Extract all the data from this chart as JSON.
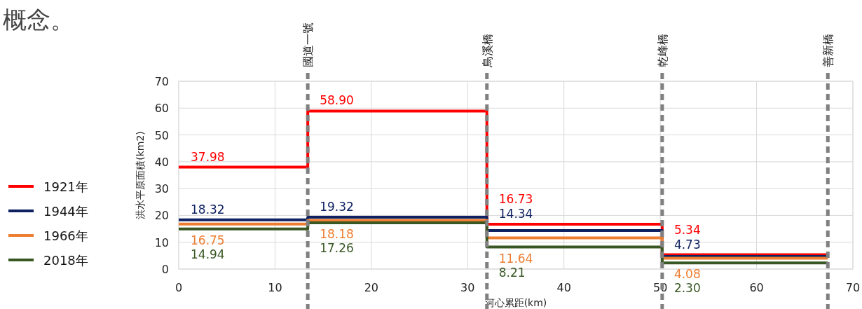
{
  "chart_data": {
    "type": "step",
    "xlabel": "河心累距(km)",
    "ylabel": "洪水平原面積(km2)",
    "annotations": [
      "概念。"
    ],
    "xlim": [
      0,
      70
    ],
    "xticks": [
      0,
      10,
      20,
      30,
      40,
      50,
      60,
      70
    ],
    "ylim": [
      0,
      70
    ],
    "yticks": [
      0,
      10,
      20,
      30,
      40,
      50,
      60,
      70
    ],
    "grid": true,
    "legend": "left",
    "line_style": "solid",
    "marker": "none",
    "x": [
      0,
      13.4,
      32,
      50.2,
      67.4
    ],
    "series": [
      {
        "name": "1921年",
        "color": "#ff0000",
        "values": [
          37.98,
          58.9,
          16.73,
          5.34,
          5.34
        ],
        "value_labels": [
          "37.98",
          "58.90",
          "16.73",
          "5.34",
          null
        ]
      },
      {
        "name": "1944年",
        "color": "#0e2161",
        "values": [
          18.32,
          19.32,
          14.34,
          4.73,
          4.73
        ],
        "value_labels": [
          "18.32",
          "19.32",
          "14.34",
          "4.73",
          null
        ]
      },
      {
        "name": "1966年",
        "color": "#ed7d31",
        "values": [
          16.75,
          18.18,
          11.64,
          4.08,
          4.08
        ],
        "value_labels": [
          "16.75",
          "18.18",
          "11.64",
          "4.08",
          null
        ]
      },
      {
        "name": "2018年",
        "color": "#385723",
        "values": [
          14.94,
          17.26,
          8.21,
          2.3,
          2.3
        ],
        "value_labels": [
          "14.94",
          "17.26",
          "8.21",
          "2.30",
          null
        ]
      }
    ],
    "ref_lines": [
      {
        "axis": "x",
        "value": 13.4,
        "label": "國道一號",
        "color": "#808080",
        "line_style": "dashed"
      },
      {
        "axis": "x",
        "value": 32,
        "label": "鳥溪橋",
        "color": "#808080",
        "line_style": "dashed"
      },
      {
        "axis": "x",
        "value": 50.2,
        "label": "乾峰橋",
        "color": "#808080",
        "line_style": "dashed"
      },
      {
        "axis": "x",
        "value": 67.4,
        "label": "善新橋",
        "color": "#808080",
        "line_style": "dashed"
      }
    ]
  }
}
